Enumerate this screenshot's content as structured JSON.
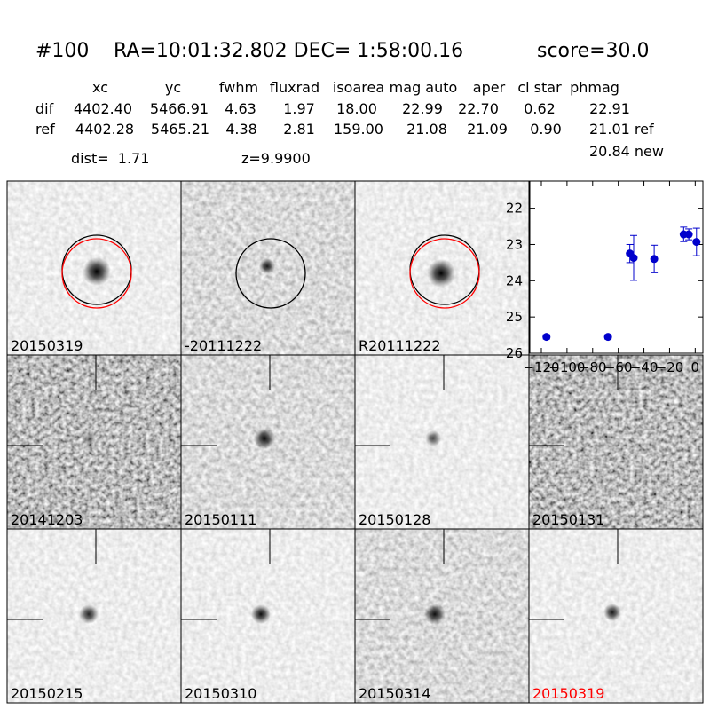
{
  "header": {
    "id": "#100",
    "coords": "RA=10:01:32.802 DEC= 1:58:00.16",
    "score": "score=30.0"
  },
  "table": {
    "columns": [
      "xc",
      "yc",
      "fwhm",
      "fluxrad",
      "isoarea",
      "mag auto",
      "aper",
      "cl star",
      "phmag"
    ],
    "rows": [
      [
        "dif",
        "4402.40",
        "5466.91",
        "4.63",
        "1.97",
        "18.00",
        "22.99",
        "22.70",
        "0.62",
        "22.91"
      ],
      [
        "ref",
        "4402.28",
        "5465.21",
        "4.38",
        "2.81",
        "159.00",
        "21.08",
        "21.09",
        "0.90",
        "21.01 ref"
      ]
    ],
    "extra": "20.84 new"
  },
  "dist": "dist=  1.71",
  "z": "z=9.9900",
  "stamps": [
    {
      "label": "20150319"
    },
    {
      "label": "-20111222"
    },
    {
      "label": "R20111222"
    },
    {
      "label": "20141203"
    },
    {
      "label": "20150111"
    },
    {
      "label": "20150128"
    },
    {
      "label": "20150131"
    },
    {
      "label": "20150215"
    },
    {
      "label": "20150310"
    },
    {
      "label": "20150314"
    },
    {
      "label": "20150319",
      "color": "#ff0000"
    }
  ],
  "chart_data": {
    "type": "errorbar",
    "color": "#0000cc",
    "x": [
      -116,
      -68,
      -51,
      -48,
      -32,
      -9,
      -5,
      1
    ],
    "values": [
      25.55,
      25.55,
      23.25,
      23.37,
      23.4,
      22.72,
      22.72,
      22.93
    ],
    "errors": [
      0.06,
      0.06,
      0.25,
      0.62,
      0.38,
      0.2,
      0.15,
      0.38
    ],
    "xlim": [
      -129,
      6
    ],
    "ylim": [
      26,
      21.25
    ],
    "xticks": [
      {
        "value": -120,
        "label": "−120"
      },
      {
        "value": -100,
        "label": "−100"
      },
      {
        "value": -80,
        "label": "−80"
      },
      {
        "value": -60,
        "label": "−60"
      },
      {
        "value": -40,
        "label": "−40"
      },
      {
        "value": -20,
        "label": "−20"
      },
      0
    ],
    "yticks": [
      22,
      23,
      24,
      25,
      26
    ]
  }
}
